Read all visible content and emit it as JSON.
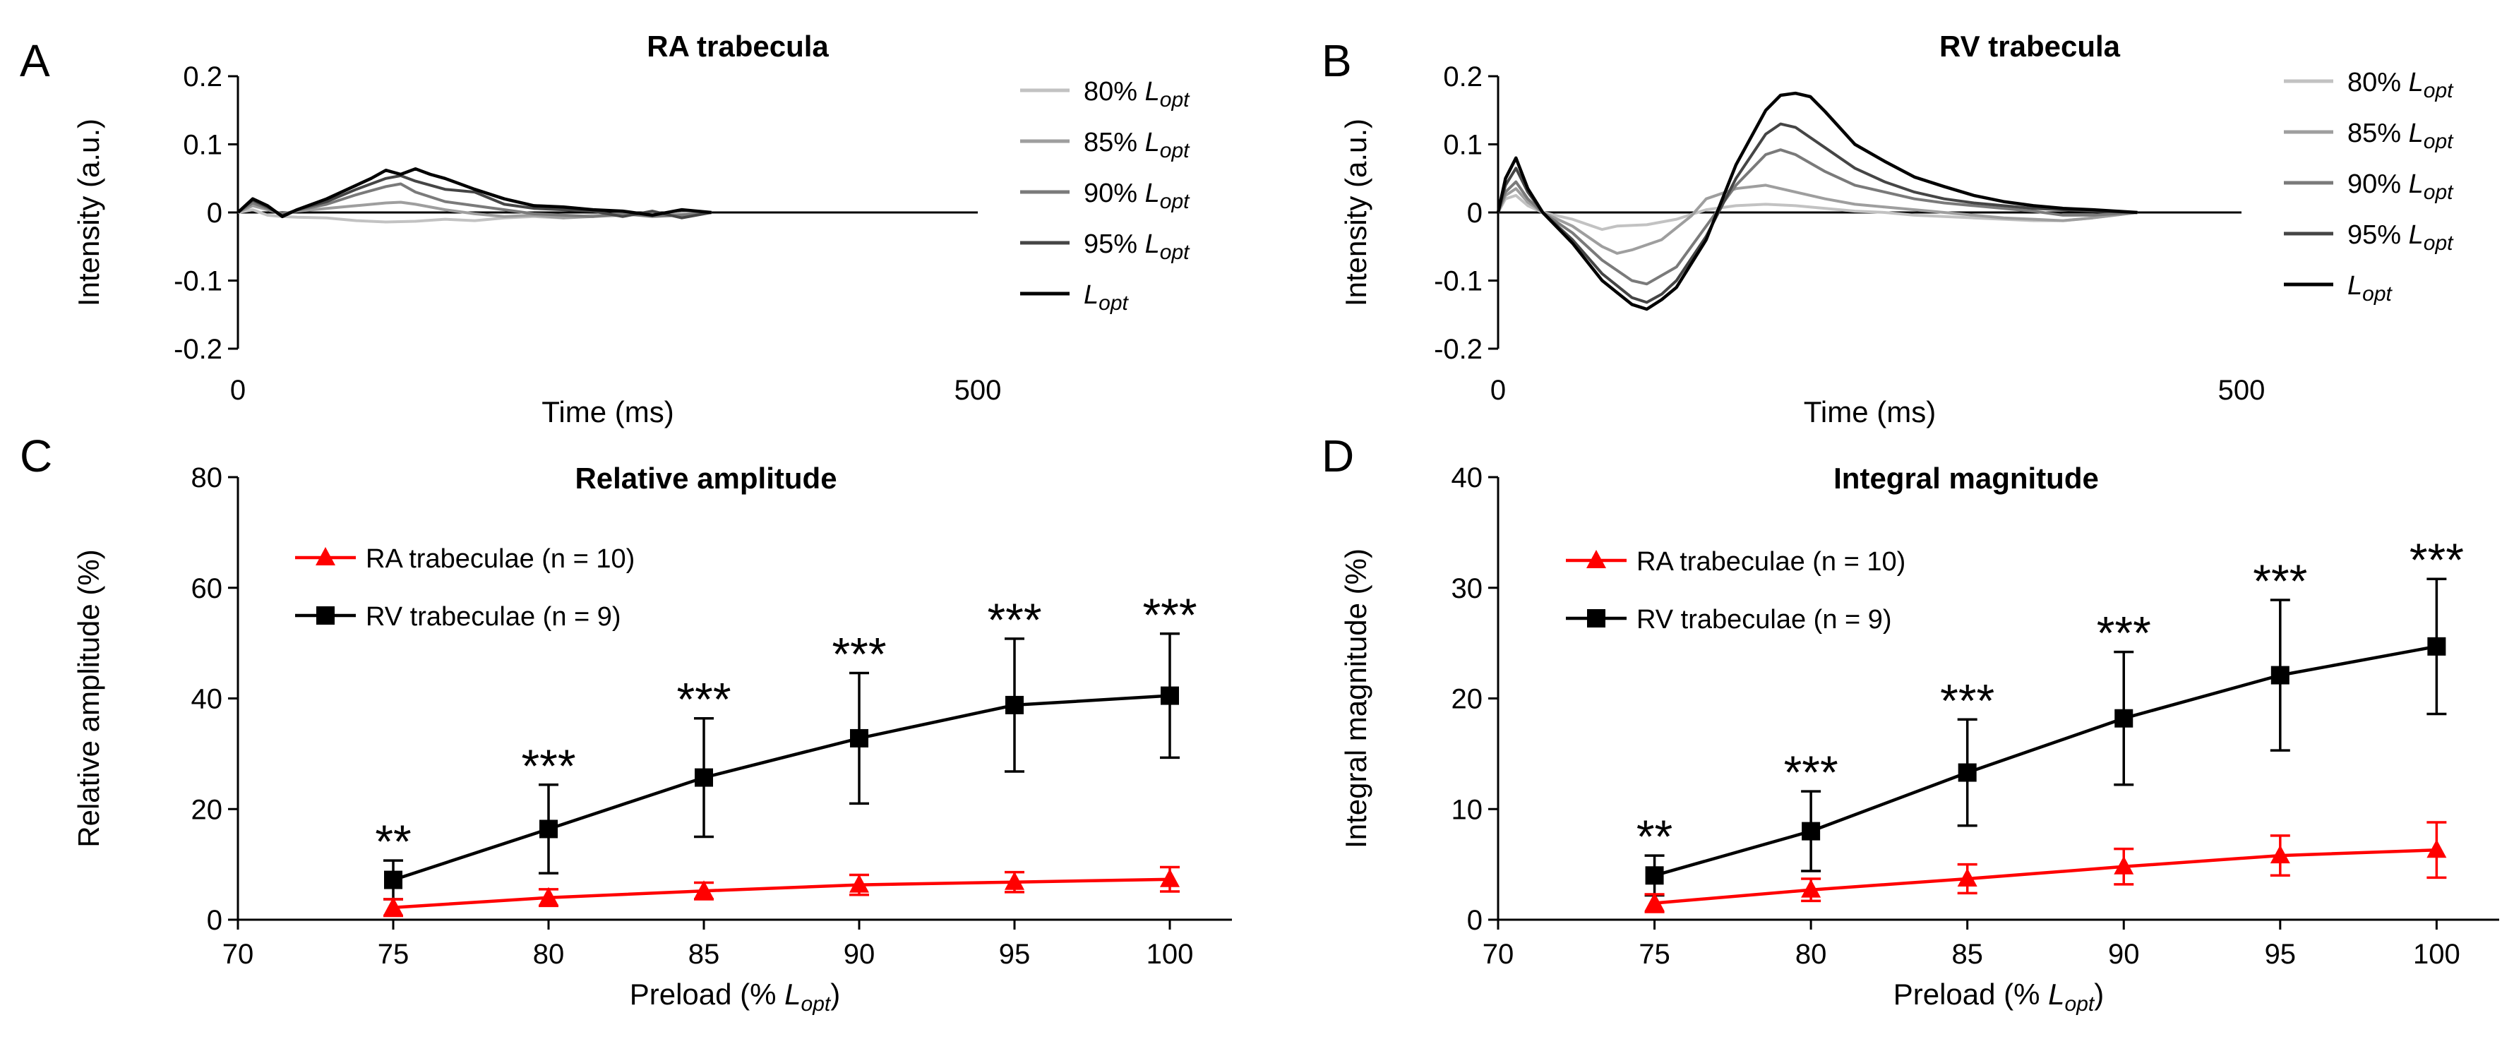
{
  "panels": {
    "A": {
      "letter": "A",
      "title": "RA trabecula"
    },
    "B": {
      "letter": "B",
      "title": "RV trabecula"
    },
    "C": {
      "letter": "C",
      "title": "Relative amplitude"
    },
    "D": {
      "letter": "D",
      "title": "Integral magnitude"
    }
  },
  "chart_data": [
    {
      "id": "A",
      "type": "line",
      "title": "RA trabecula",
      "xlabel": "Time (ms)",
      "ylabel": "Intensity (a.u.)",
      "xlim": [
        0,
        500
      ],
      "ylim": [
        -0.2,
        0.2
      ],
      "xticks": [
        "0",
        "500"
      ],
      "yticks": [
        "0.2",
        "0.1",
        "0",
        "-0.1",
        "-0.2"
      ],
      "legend_position": "right",
      "series": [
        {
          "name": "80% Lopt",
          "prefix": "80%",
          "color": "#c2c2c2",
          "x": [
            0,
            10,
            20,
            30,
            40,
            60,
            80,
            100,
            120,
            140,
            160,
            180,
            200,
            220,
            240,
            260,
            280,
            300,
            320
          ],
          "y": [
            0,
            0.004,
            -0.004,
            -0.006,
            -0.007,
            -0.008,
            -0.012,
            -0.014,
            -0.013,
            -0.01,
            -0.012,
            -0.008,
            -0.006,
            -0.008,
            -0.004,
            -0.002,
            -0.005,
            -0.001,
            0
          ]
        },
        {
          "name": "85% Lopt",
          "prefix": "85%",
          "color": "#9e9e9e",
          "x": [
            0,
            10,
            20,
            30,
            40,
            60,
            80,
            100,
            110,
            120,
            140,
            160,
            180,
            200,
            220,
            240,
            260,
            280,
            300,
            320
          ],
          "y": [
            0,
            0.01,
            0.004,
            -0.002,
            0.002,
            0.006,
            0.01,
            0.014,
            0.015,
            0.012,
            0.004,
            -0.002,
            -0.006,
            -0.004,
            -0.008,
            -0.006,
            -0.004,
            -0.002,
            -0.003,
            0
          ]
        },
        {
          "name": "90% Lopt",
          "prefix": "90%",
          "color": "#7a7a7a",
          "x": [
            0,
            10,
            20,
            30,
            40,
            60,
            80,
            100,
            110,
            120,
            140,
            160,
            180,
            200,
            220,
            240,
            260,
            280,
            300,
            320
          ],
          "y": [
            0,
            0.014,
            0.006,
            -0.004,
            0.003,
            0.012,
            0.026,
            0.038,
            0.042,
            0.03,
            0.016,
            0.01,
            0.004,
            -0.002,
            -0.004,
            -0.006,
            -0.002,
            -0.006,
            -0.004,
            0
          ]
        },
        {
          "name": "95% Lopt",
          "prefix": "95%",
          "color": "#454545",
          "x": [
            0,
            10,
            20,
            30,
            40,
            60,
            80,
            100,
            110,
            120,
            140,
            160,
            180,
            200,
            220,
            240,
            260,
            280,
            300,
            320
          ],
          "y": [
            0,
            0.018,
            0.008,
            -0.004,
            0.004,
            0.016,
            0.034,
            0.05,
            0.054,
            0.046,
            0.034,
            0.03,
            0.012,
            0.006,
            0.004,
            0.002,
            -0.006,
            0.002,
            -0.008,
            0
          ]
        },
        {
          "name": "Lopt",
          "prefix": "",
          "color": "#000000",
          "x": [
            0,
            10,
            20,
            30,
            40,
            60,
            80,
            90,
            100,
            110,
            120,
            130,
            140,
            160,
            180,
            200,
            220,
            240,
            260,
            280,
            300,
            320
          ],
          "y": [
            0,
            0.02,
            0.01,
            -0.006,
            0.004,
            0.02,
            0.04,
            0.05,
            0.062,
            0.056,
            0.064,
            0.056,
            0.05,
            0.034,
            0.02,
            0.01,
            0.008,
            0.004,
            0.002,
            -0.004,
            0.004,
            0
          ]
        }
      ]
    },
    {
      "id": "B",
      "type": "line",
      "title": "RV trabecula",
      "xlabel": "Time (ms)",
      "ylabel": "Intensity (a.u.)",
      "xlim": [
        0,
        500
      ],
      "ylim": [
        -0.2,
        0.2
      ],
      "xticks": [
        "0",
        "500"
      ],
      "yticks": [
        "0.2",
        "0.1",
        "0",
        "-0.1",
        "-0.2"
      ],
      "legend_position": "right",
      "series": [
        {
          "name": "80% Lopt",
          "prefix": "80%",
          "color": "#c2c2c2",
          "x": [
            0,
            5,
            12,
            20,
            30,
            50,
            70,
            80,
            100,
            120,
            140,
            160,
            180,
            200,
            220,
            240,
            260,
            280,
            300,
            320,
            340,
            360,
            380,
            400,
            430
          ],
          "y": [
            0,
            0.02,
            0.025,
            0.01,
            0,
            -0.01,
            -0.025,
            -0.02,
            -0.018,
            -0.01,
            0.004,
            0.01,
            0.012,
            0.01,
            0.006,
            0.002,
            0,
            -0.004,
            -0.006,
            -0.008,
            -0.01,
            -0.012,
            -0.012,
            -0.008,
            0
          ]
        },
        {
          "name": "85% Lopt",
          "prefix": "85%",
          "color": "#9e9e9e",
          "x": [
            0,
            5,
            12,
            20,
            30,
            50,
            70,
            80,
            90,
            110,
            130,
            140,
            160,
            180,
            200,
            220,
            240,
            260,
            280,
            300,
            320,
            340,
            360,
            380,
            400,
            430
          ],
          "y": [
            0,
            0.025,
            0.035,
            0.015,
            0,
            -0.02,
            -0.05,
            -0.06,
            -0.055,
            -0.04,
            -0.005,
            0.02,
            0.035,
            0.04,
            0.03,
            0.02,
            0.012,
            0.008,
            0.004,
            0,
            -0.004,
            -0.008,
            -0.01,
            -0.012,
            -0.008,
            0
          ]
        },
        {
          "name": "90% Lopt",
          "prefix": "90%",
          "color": "#7a7a7a",
          "x": [
            0,
            5,
            12,
            20,
            30,
            50,
            70,
            90,
            100,
            120,
            140,
            160,
            180,
            190,
            200,
            220,
            240,
            260,
            280,
            300,
            320,
            340,
            360,
            380,
            400,
            430
          ],
          "y": [
            0,
            0.03,
            0.045,
            0.02,
            0,
            -0.03,
            -0.07,
            -0.1,
            -0.105,
            -0.08,
            -0.02,
            0.04,
            0.085,
            0.092,
            0.085,
            0.06,
            0.04,
            0.03,
            0.02,
            0.014,
            0.01,
            0.006,
            0.002,
            -0.004,
            -0.004,
            0
          ]
        },
        {
          "name": "95% Lopt",
          "prefix": "95%",
          "color": "#454545",
          "x": [
            0,
            5,
            12,
            20,
            30,
            50,
            70,
            90,
            100,
            110,
            120,
            140,
            160,
            180,
            190,
            200,
            220,
            240,
            260,
            280,
            300,
            320,
            340,
            360,
            380,
            400,
            430
          ],
          "y": [
            0,
            0.04,
            0.065,
            0.03,
            0,
            -0.04,
            -0.09,
            -0.125,
            -0.132,
            -0.12,
            -0.1,
            -0.035,
            0.05,
            0.115,
            0.13,
            0.125,
            0.095,
            0.065,
            0.045,
            0.03,
            0.02,
            0.014,
            0.01,
            0.006,
            0.004,
            0.002,
            0
          ]
        },
        {
          "name": "Lopt",
          "prefix": "",
          "color": "#000000",
          "x": [
            0,
            5,
            12,
            20,
            30,
            50,
            70,
            90,
            100,
            110,
            120,
            140,
            160,
            180,
            190,
            200,
            210,
            220,
            240,
            260,
            280,
            300,
            320,
            340,
            360,
            380,
            400,
            430
          ],
          "y": [
            0,
            0.05,
            0.08,
            0.035,
            0,
            -0.045,
            -0.1,
            -0.135,
            -0.142,
            -0.128,
            -0.11,
            -0.04,
            0.07,
            0.15,
            0.172,
            0.175,
            0.17,
            0.148,
            0.1,
            0.075,
            0.052,
            0.038,
            0.025,
            0.016,
            0.01,
            0.006,
            0.004,
            0
          ]
        }
      ]
    },
    {
      "id": "C",
      "type": "line",
      "title": "Relative amplitude",
      "xlabel": "Preload (% Lopt)",
      "xlabel_prefix": "Preload (% ",
      "xlabel_suffix": ")",
      "ylabel": "Relative amplitude (%)",
      "xlim": [
        70,
        102
      ],
      "ylim": [
        0,
        80
      ],
      "xticks": [
        "70",
        "75",
        "80",
        "85",
        "90",
        "95",
        "100"
      ],
      "yticks": [
        "80",
        "60",
        "40",
        "20",
        "0"
      ],
      "legend_position": "upper-left",
      "x": [
        75,
        80,
        85,
        90,
        95,
        100
      ],
      "series": [
        {
          "name": "RA trabeculae (n = 10)",
          "marker": "triangle",
          "color": "#ff0000",
          "values": [
            2.2,
            4.0,
            5.2,
            6.3,
            6.8,
            7.3
          ],
          "err": [
            1.5,
            1.5,
            1.5,
            1.8,
            1.8,
            2.2
          ]
        },
        {
          "name": "RV trabeculae (n = 9)",
          "marker": "square",
          "color": "#000000",
          "values": [
            7.2,
            16.4,
            25.7,
            32.8,
            38.8,
            40.5
          ],
          "err": [
            3.5,
            8.0,
            10.7,
            11.8,
            12.0,
            11.2
          ]
        }
      ],
      "annotations": [
        "**",
        "***",
        "***",
        "***",
        "***",
        "***"
      ]
    },
    {
      "id": "D",
      "type": "line",
      "title": "Integral magnitude",
      "xlabel": "Preload (% Lopt)",
      "xlabel_prefix": "Preload (% ",
      "xlabel_suffix": ")",
      "ylabel": "Integral magnitude (%)",
      "xlim": [
        70,
        102
      ],
      "ylim": [
        0,
        40
      ],
      "xticks": [
        "70",
        "75",
        "80",
        "85",
        "90",
        "95",
        "100"
      ],
      "yticks": [
        "40",
        "30",
        "20",
        "10",
        "0"
      ],
      "legend_position": "upper-left",
      "x": [
        75,
        80,
        85,
        90,
        95,
        100
      ],
      "series": [
        {
          "name": "RA trabeculae (n = 10)",
          "marker": "triangle",
          "color": "#ff0000",
          "values": [
            1.5,
            2.7,
            3.7,
            4.8,
            5.8,
            6.3
          ],
          "err": [
            0.8,
            1.0,
            1.3,
            1.6,
            1.8,
            2.5
          ]
        },
        {
          "name": "RV trabeculae (n = 9)",
          "marker": "square",
          "color": "#000000",
          "values": [
            4.0,
            8.0,
            13.3,
            18.2,
            22.1,
            24.7
          ],
          "err": [
            1.8,
            3.6,
            4.8,
            6.0,
            6.8,
            6.1
          ]
        }
      ],
      "annotations": [
        "**",
        "***",
        "***",
        "***",
        "***",
        "***"
      ]
    }
  ]
}
